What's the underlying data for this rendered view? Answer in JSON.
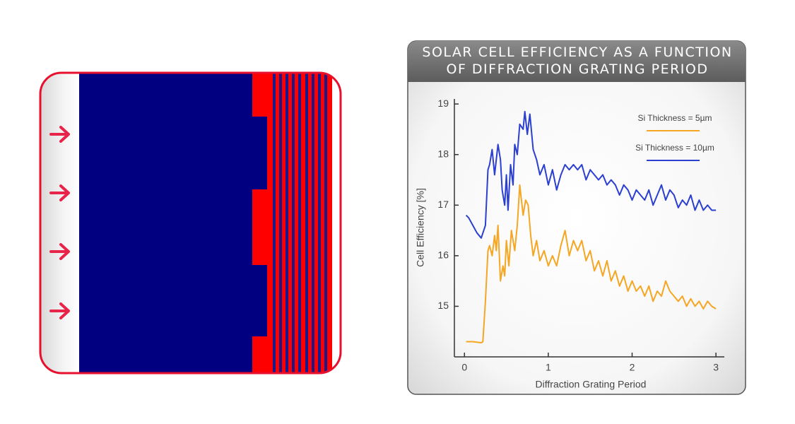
{
  "chart_data": {
    "type": "line",
    "title": "SOLAR CELL EFFICIENCY AS A FUNCTION OF DIFFRACTION GRATING PERIOD",
    "xlabel": "Diffraction Grating Period",
    "ylabel": "Cell Efficiency [%]",
    "xlim": [
      -0.12,
      3.1
    ],
    "ylim": [
      14,
      19.1
    ],
    "xticks": [
      0,
      1,
      2,
      3
    ],
    "yticks": [
      15,
      16,
      17,
      18,
      19
    ],
    "legend": "upper right",
    "series": [
      {
        "name": "Si Thickness = 5µm",
        "color": "#f5a623",
        "x": [
          0.02,
          0.1,
          0.2,
          0.22,
          0.25,
          0.28,
          0.3,
          0.33,
          0.36,
          0.38,
          0.4,
          0.43,
          0.46,
          0.48,
          0.5,
          0.53,
          0.56,
          0.6,
          0.63,
          0.66,
          0.7,
          0.73,
          0.76,
          0.79,
          0.82,
          0.86,
          0.9,
          0.95,
          1.0,
          1.05,
          1.1,
          1.15,
          1.2,
          1.25,
          1.3,
          1.35,
          1.4,
          1.45,
          1.5,
          1.55,
          1.6,
          1.65,
          1.7,
          1.75,
          1.8,
          1.85,
          1.9,
          1.95,
          2.0,
          2.05,
          2.1,
          2.15,
          2.2,
          2.25,
          2.3,
          2.35,
          2.4,
          2.45,
          2.5,
          2.55,
          2.6,
          2.65,
          2.7,
          2.75,
          2.8,
          2.85,
          2.9,
          2.95,
          3.0
        ],
        "values": [
          14.3,
          14.3,
          14.28,
          14.3,
          15.1,
          16.1,
          16.2,
          16.0,
          16.4,
          16.1,
          16.6,
          15.5,
          15.8,
          15.6,
          16.3,
          15.8,
          16.5,
          16.1,
          16.6,
          17.4,
          16.8,
          17.1,
          17.0,
          16.4,
          16.0,
          16.3,
          15.9,
          16.1,
          15.8,
          16.0,
          15.8,
          16.2,
          16.5,
          16.0,
          16.3,
          16.1,
          16.3,
          15.9,
          16.1,
          15.7,
          15.9,
          15.6,
          15.9,
          15.5,
          15.7,
          15.4,
          15.6,
          15.3,
          15.5,
          15.3,
          15.4,
          15.2,
          15.4,
          15.1,
          15.3,
          15.2,
          15.5,
          15.3,
          15.2,
          15.1,
          15.2,
          15.0,
          15.15,
          15.0,
          15.1,
          14.95,
          15.1,
          15.0,
          14.95
        ]
      },
      {
        "name": "Si Thickness = 10µm",
        "color": "#2b3fd1",
        "x": [
          0.02,
          0.05,
          0.1,
          0.15,
          0.2,
          0.25,
          0.28,
          0.3,
          0.33,
          0.36,
          0.4,
          0.43,
          0.45,
          0.48,
          0.5,
          0.52,
          0.55,
          0.58,
          0.6,
          0.63,
          0.66,
          0.7,
          0.72,
          0.75,
          0.78,
          0.82,
          0.86,
          0.9,
          0.95,
          1.0,
          1.05,
          1.1,
          1.15,
          1.2,
          1.25,
          1.3,
          1.35,
          1.4,
          1.45,
          1.5,
          1.55,
          1.6,
          1.65,
          1.7,
          1.75,
          1.8,
          1.85,
          1.9,
          1.95,
          2.0,
          2.05,
          2.1,
          2.15,
          2.2,
          2.25,
          2.3,
          2.35,
          2.4,
          2.45,
          2.5,
          2.55,
          2.6,
          2.65,
          2.7,
          2.75,
          2.8,
          2.85,
          2.9,
          2.95,
          3.0
        ],
        "values": [
          16.8,
          16.75,
          16.6,
          16.45,
          16.35,
          16.6,
          17.7,
          17.8,
          18.1,
          17.6,
          18.2,
          17.9,
          17.3,
          17.0,
          17.6,
          16.9,
          17.8,
          17.4,
          18.2,
          18.0,
          18.6,
          18.5,
          18.85,
          18.4,
          18.8,
          18.1,
          17.9,
          17.6,
          17.8,
          17.4,
          17.7,
          17.3,
          17.6,
          17.8,
          17.7,
          17.8,
          17.7,
          17.8,
          17.5,
          17.7,
          17.6,
          17.5,
          17.6,
          17.4,
          17.5,
          17.4,
          17.2,
          17.4,
          17.3,
          17.1,
          17.3,
          17.2,
          17.1,
          17.3,
          17.0,
          17.2,
          17.4,
          17.1,
          17.3,
          17.2,
          16.95,
          17.1,
          17.0,
          17.2,
          16.9,
          17.1,
          16.9,
          17.0,
          16.9,
          16.9
        ]
      }
    ]
  }
}
